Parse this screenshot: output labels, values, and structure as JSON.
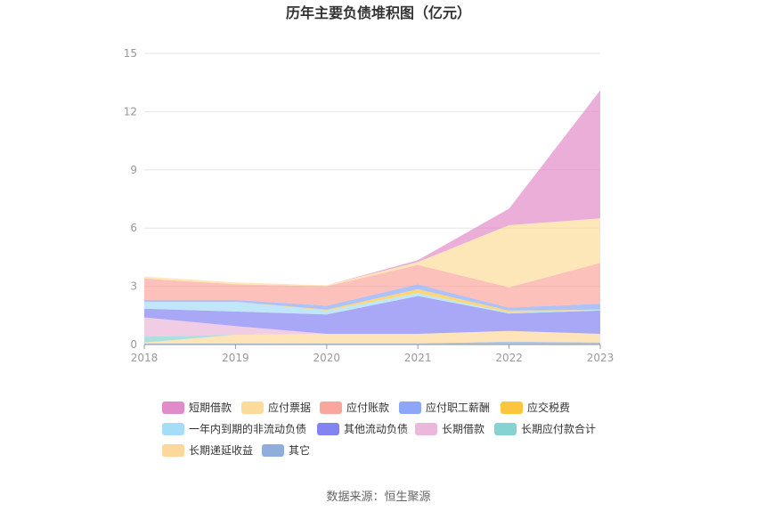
{
  "chart_data": {
    "type": "area",
    "stacked": true,
    "title": "历年主要负债堆积图（亿元）",
    "xlabel": "",
    "ylabel": "",
    "ylim": [
      0,
      15
    ],
    "yticks": [
      0,
      3,
      6,
      9,
      12,
      15
    ],
    "x": [
      "2018",
      "2019",
      "2020",
      "2021",
      "2022",
      "2023"
    ],
    "grid": true,
    "legend_position": "bottom",
    "series": [
      {
        "name": "其它",
        "color": "#8eaedb",
        "values": [
          0.05,
          0.05,
          0.05,
          0.05,
          0.15,
          0.1
        ]
      },
      {
        "name": "长期递延收益",
        "color": "#fdd89a",
        "values": [
          0.05,
          0.45,
          0.5,
          0.5,
          0.55,
          0.45
        ]
      },
      {
        "name": "长期应付款合计",
        "color": "#86d3d3",
        "values": [
          0.3,
          0.0,
          0.0,
          0.0,
          0.0,
          0.0
        ]
      },
      {
        "name": "长期借款",
        "color": "#eab8da",
        "values": [
          1.0,
          0.45,
          0.0,
          0.0,
          0.0,
          0.0
        ]
      },
      {
        "name": "其他流动负债",
        "color": "#8383f2",
        "values": [
          0.45,
          0.75,
          1.0,
          1.95,
          0.9,
          1.2
        ]
      },
      {
        "name": "一年内到期的非流动负债",
        "color": "#a5dcf6",
        "values": [
          0.35,
          0.5,
          0.2,
          0.15,
          0.05,
          0.05
        ]
      },
      {
        "name": "应交税费",
        "color": "#fbc63d",
        "values": [
          0.0,
          0.0,
          0.05,
          0.2,
          0.1,
          0.0
        ]
      },
      {
        "name": "应付职工薪酬",
        "color": "#8da7f6",
        "values": [
          0.1,
          0.1,
          0.2,
          0.25,
          0.15,
          0.3
        ]
      },
      {
        "name": "应付账款",
        "color": "#f9a69c",
        "values": [
          1.1,
          0.8,
          1.0,
          1.0,
          1.05,
          2.1
        ]
      },
      {
        "name": "应付票据",
        "color": "#fcdb9a",
        "values": [
          0.1,
          0.1,
          0.05,
          0.15,
          3.2,
          2.3
        ]
      },
      {
        "name": "短期借款",
        "color": "#e18bc9",
        "values": [
          0.0,
          0.0,
          0.0,
          0.1,
          0.85,
          6.6
        ]
      }
    ],
    "legend_order": [
      "短期借款",
      "应付票据",
      "应付账款",
      "应付职工薪酬",
      "应交税费",
      "一年内到期的非流动负债",
      "其他流动负债",
      "长期借款",
      "长期应付款合计",
      "长期递延收益",
      "其它"
    ],
    "source": "数据来源：恒生聚源"
  }
}
